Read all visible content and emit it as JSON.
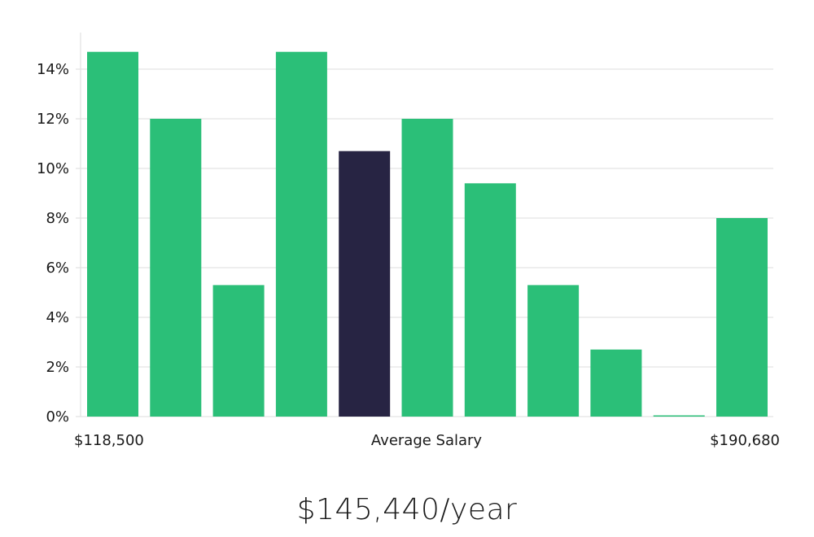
{
  "chart_data": {
    "type": "bar",
    "title": "",
    "xlabel": "Average Salary",
    "ylabel": "",
    "x_min_label": "$118,500",
    "x_max_label": "$190,680",
    "ylim": [
      0,
      15
    ],
    "yticks": [
      0,
      2,
      4,
      6,
      8,
      10,
      12,
      14
    ],
    "ytick_labels": [
      "0%",
      "2%",
      "4%",
      "6%",
      "8%",
      "10%",
      "12%",
      "14%"
    ],
    "grid": true,
    "values": [
      14.7,
      12.0,
      5.3,
      14.7,
      10.7,
      12.0,
      9.4,
      5.3,
      2.7,
      0.05,
      8.0
    ],
    "highlight_index": 4,
    "colors": {
      "bar": "#2bbf78",
      "highlight": "#272443"
    }
  },
  "summary": {
    "salary_text": "$145,440/year"
  }
}
